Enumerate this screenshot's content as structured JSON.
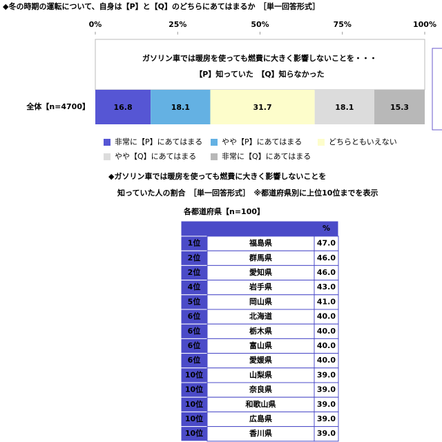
{
  "chart_data": {
    "type": "stacked-bar-horizontal",
    "title": "◆冬の時期の運転について、自身は【P】と【Q】のどちらにあてはまるか　［単一回答形式］",
    "annotations": [
      "ガソリン車では暖房を使っても燃費に大きく影響しないことを・・・",
      "【P】知っていた　【Q】知らなかった"
    ],
    "categories": [
      "全体【n=4700】"
    ],
    "xlim": [
      0,
      100
    ],
    "xticks": [
      {
        "value": 0,
        "label": "0%"
      },
      {
        "value": 25,
        "label": "25%"
      },
      {
        "value": 50,
        "label": "50%"
      },
      {
        "value": 75,
        "label": "75%"
      },
      {
        "value": 100,
        "label": "100%"
      }
    ],
    "series": [
      {
        "name": "非常に【P】にあてはまる",
        "color": "#5656d4",
        "values": [
          16.8
        ]
      },
      {
        "name": "やや【P】にあてはまる",
        "color": "#64b1e3",
        "values": [
          18.1
        ]
      },
      {
        "name": "どちらともいえない",
        "color": "#fdfdcb",
        "values": [
          31.7
        ]
      },
      {
        "name": "やや【Q】にあてはまる",
        "color": "#dcdcdc",
        "values": [
          18.1
        ]
      },
      {
        "name": "非常に【Q】にあてはまる",
        "color": "#b8b8b8",
        "values": [
          15.3
        ]
      }
    ]
  },
  "ranking": {
    "title_lines": [
      "◆ガソリン車では暖房を使っても燃費に大きく影響しないことを",
      "知っていた人の割合　［単一回答形式］　※都道府県別に上位10位までを表示"
    ],
    "caption": "各都道府県【n=100】",
    "header_value": "%",
    "rows": [
      [
        "1位",
        "福島県",
        "47.0"
      ],
      [
        "2位",
        "群馬県",
        "46.0"
      ],
      [
        "2位",
        "愛知県",
        "46.0"
      ],
      [
        "4位",
        "岩手県",
        "43.0"
      ],
      [
        "5位",
        "岡山県",
        "41.0"
      ],
      [
        "6位",
        "北海道",
        "40.0"
      ],
      [
        "6位",
        "栃木県",
        "40.0"
      ],
      [
        "6位",
        "富山県",
        "40.0"
      ],
      [
        "6位",
        "愛媛県",
        "40.0"
      ],
      [
        "10位",
        "山梨県",
        "39.0"
      ],
      [
        "10位",
        "奈良県",
        "39.0"
      ],
      [
        "10位",
        "和歌山県",
        "39.0"
      ],
      [
        "10位",
        "広島県",
        "39.0"
      ],
      [
        "10位",
        "香川県",
        "39.0"
      ]
    ]
  }
}
